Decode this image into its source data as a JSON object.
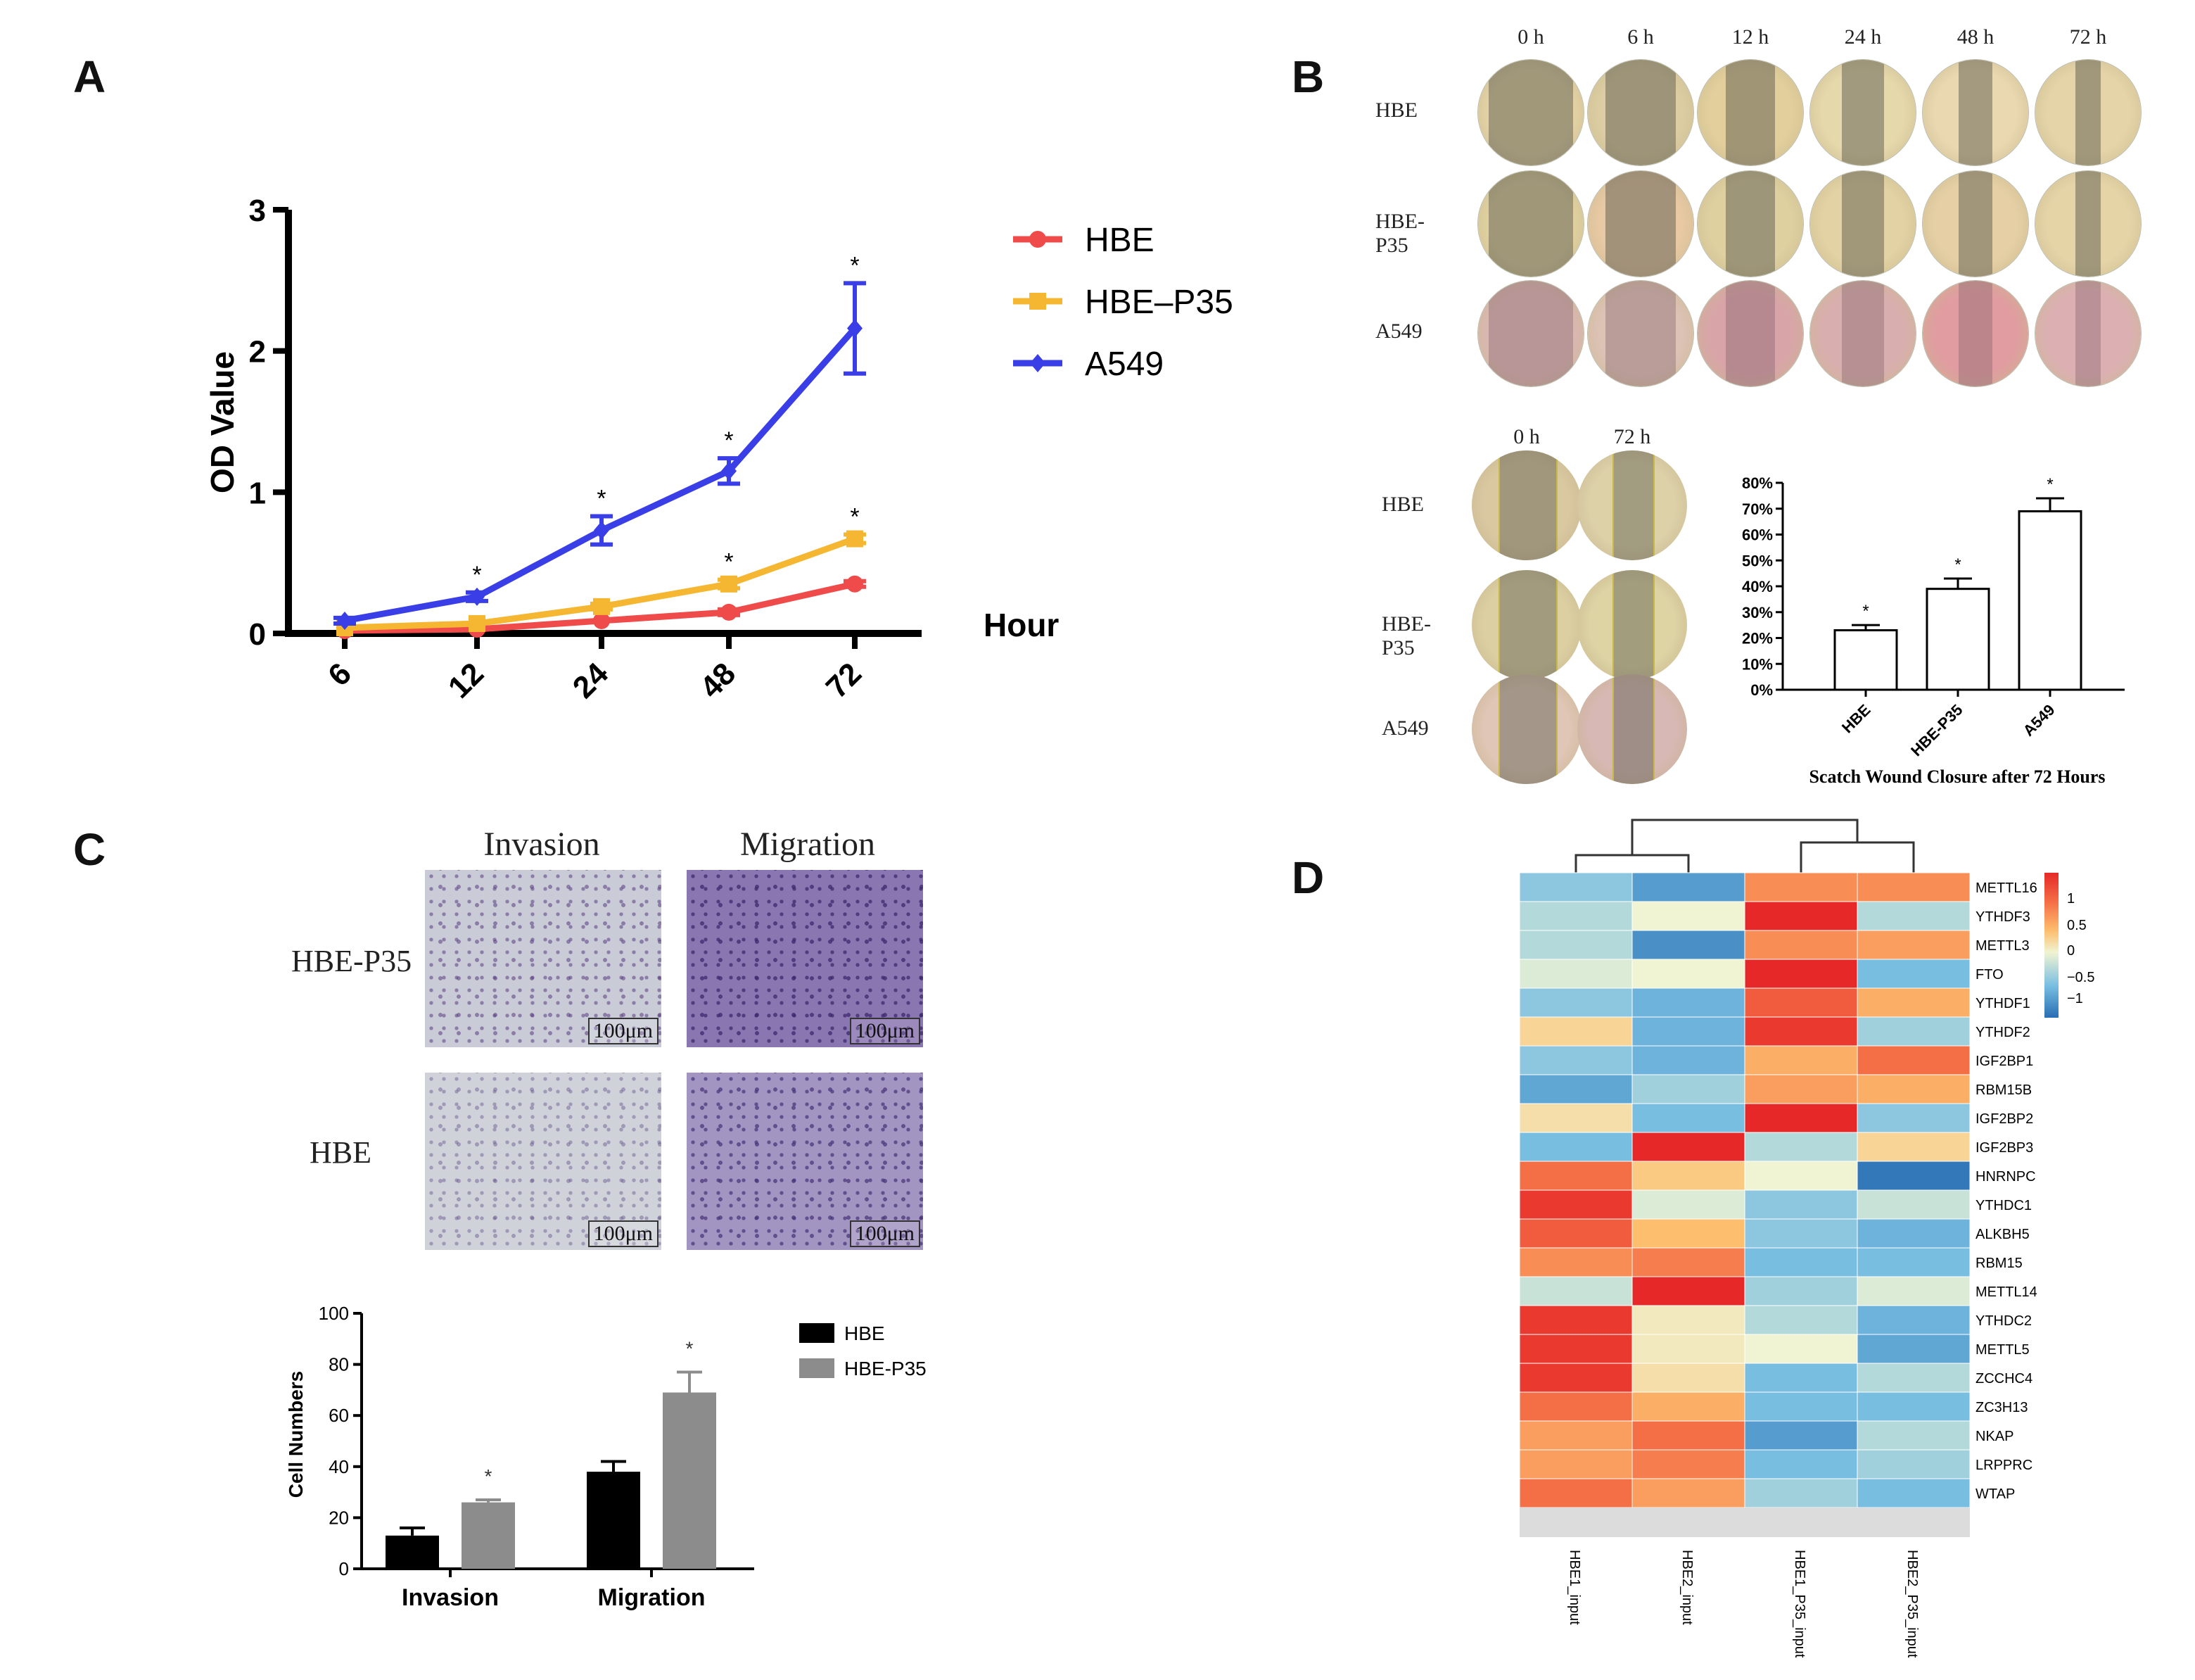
{
  "panels": {
    "a": "A",
    "b": "B",
    "c": "C",
    "d": "D"
  },
  "panel_a": {
    "chart_data": {
      "type": "line",
      "x": [
        6,
        12,
        24,
        48,
        72
      ],
      "ylabel": "OD Value",
      "xlabel": "Hour",
      "ylim": [
        0,
        3
      ],
      "yticks": [
        "0",
        "1",
        "2",
        "3"
      ],
      "xticks": [
        "6",
        "12",
        "24",
        "48",
        "72"
      ],
      "series": [
        {
          "name": "HBE",
          "color": "#f04b4b",
          "marker": "circle",
          "values": [
            0.02,
            0.03,
            0.09,
            0.15,
            0.35
          ],
          "err": [
            0.01,
            0.01,
            0.01,
            0.02,
            0.02
          ],
          "sig": [
            "",
            "",
            "",
            "",
            ""
          ]
        },
        {
          "name": "HBE–P35",
          "color": "#f5b731",
          "marker": "square",
          "values": [
            0.04,
            0.07,
            0.19,
            0.35,
            0.67
          ],
          "err": [
            0.01,
            0.01,
            0.02,
            0.03,
            0.03
          ],
          "sig": [
            "",
            "",
            "",
            "*",
            "*"
          ]
        },
        {
          "name": "A549",
          "color": "#3a3ee6",
          "marker": "diamond",
          "values": [
            0.09,
            0.26,
            0.73,
            1.15,
            2.16
          ],
          "err": [
            0.02,
            0.03,
            0.1,
            0.09,
            0.32
          ],
          "sig": [
            "",
            "*",
            "*",
            "*",
            "*"
          ]
        }
      ]
    }
  },
  "panel_b": {
    "time_headers": [
      "0 h",
      "6 h",
      "12 h",
      "24 h",
      "48 h",
      "72 h"
    ],
    "row_labels": [
      "HBE",
      "HBE-P35",
      "A549"
    ],
    "lower_headers": [
      "0 h",
      "72 h"
    ],
    "lower_row_labels": [
      "HBE",
      "HBE-P35",
      "A549"
    ],
    "chart_data": {
      "type": "bar",
      "title": "Scatch Wound Closure after 72 Hours",
      "categories": [
        "HBE",
        "HBE-P35",
        "A549"
      ],
      "values": [
        23,
        39,
        69
      ],
      "err": [
        2,
        4,
        5
      ],
      "sig": [
        "*",
        "*",
        "*"
      ],
      "ylim": [
        0,
        80
      ],
      "yticks": [
        "0%",
        "10%",
        "20%",
        "30%",
        "40%",
        "50%",
        "60%",
        "70%",
        "80%"
      ]
    }
  },
  "panel_c": {
    "col_headers": [
      "Invasion",
      "Migration"
    ],
    "row_labels": [
      "HBE-P35",
      "HBE"
    ],
    "scale_bar": "100μm",
    "chart_data": {
      "type": "bar",
      "categories": [
        "Invasion",
        "Migration"
      ],
      "ylabel": "Cell Numbers",
      "ylim": [
        0,
        100
      ],
      "yticks": [
        "0",
        "20",
        "40",
        "60",
        "80",
        "100"
      ],
      "series": [
        {
          "name": "HBE",
          "color": "#000000",
          "values": [
            13,
            38
          ],
          "err": [
            3,
            4
          ],
          "sig": [
            "",
            ""
          ]
        },
        {
          "name": "HBE-P35",
          "color": "#8c8c8c",
          "values": [
            26,
            69
          ],
          "err": [
            1,
            8
          ],
          "sig": [
            "*",
            "*"
          ]
        }
      ]
    }
  },
  "panel_d": {
    "chart_data": {
      "type": "heatmap",
      "columns": [
        "HBE1_input",
        "HBE2_input",
        "HBE1_P35_input",
        "HBE2_P35_input"
      ],
      "rows": [
        "METTL16",
        "YTHDF3",
        "METTL3",
        "FTO",
        "YTHDF1",
        "YTHDF2",
        "IGF2BP1",
        "RBM15B",
        "IGF2BP2",
        "IGF2BP3",
        "HNRNPC",
        "YTHDC1",
        "ALKBH5",
        "RBM15",
        "METTL14",
        "YTHDC2",
        "METTL5",
        "ZCCHC4",
        "ZC3H13",
        "NKAP",
        "LRPPRC",
        "WTAP"
      ],
      "values": [
        [
          -0.5,
          -0.9,
          0.8,
          0.8
        ],
        [
          -0.3,
          0.0,
          1.4,
          -0.3
        ],
        [
          -0.3,
          -1.0,
          0.8,
          0.7
        ],
        [
          -0.1,
          0.0,
          1.4,
          -0.6
        ],
        [
          -0.5,
          -0.7,
          1.1,
          0.6
        ],
        [
          0.3,
          -0.7,
          1.3,
          -0.4
        ],
        [
          -0.5,
          -0.7,
          0.6,
          1.0
        ],
        [
          -0.8,
          -0.4,
          0.7,
          0.6
        ],
        [
          0.2,
          -0.6,
          1.4,
          -0.5
        ],
        [
          -0.6,
          1.4,
          -0.3,
          0.3
        ],
        [
          1.0,
          0.4,
          0.0,
          -1.2
        ],
        [
          1.3,
          -0.1,
          -0.5,
          -0.2
        ],
        [
          1.1,
          0.5,
          -0.5,
          -0.7
        ],
        [
          0.8,
          0.9,
          -0.6,
          -0.6
        ],
        [
          -0.2,
          1.4,
          -0.4,
          -0.1
        ],
        [
          1.3,
          0.1,
          -0.3,
          -0.7
        ],
        [
          1.3,
          0.1,
          0.0,
          -0.8
        ],
        [
          1.3,
          0.2,
          -0.6,
          -0.3
        ],
        [
          1.0,
          0.6,
          -0.6,
          -0.6
        ],
        [
          0.7,
          1.0,
          -0.9,
          -0.3
        ],
        [
          0.7,
          0.9,
          -0.6,
          -0.4
        ],
        [
          1.0,
          0.7,
          -0.4,
          -0.6
        ]
      ],
      "scale_ticks": [
        "1",
        "0.5",
        "0",
        "−0.5",
        "−1"
      ]
    }
  }
}
